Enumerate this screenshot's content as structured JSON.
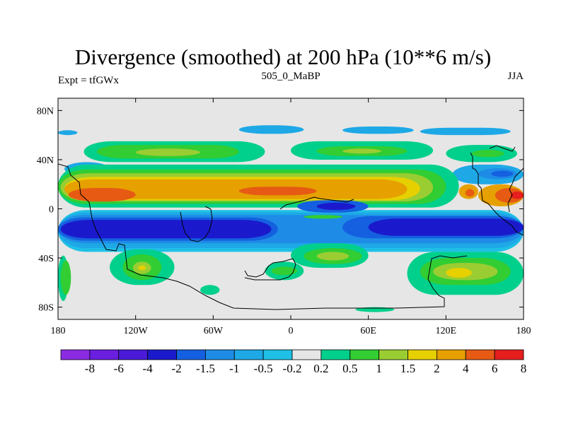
{
  "chart_data": {
    "type": "heatmap",
    "title": "Divergence (smoothed) at 200 hPa (10**6 m/s)",
    "left_string": "Expt = tfGWx",
    "center_string": "505_0_MaBP",
    "right_string": "JJA",
    "xlim": [
      -180,
      180
    ],
    "ylim": [
      -90,
      90
    ],
    "x_ticks": [
      {
        "value": -180,
        "label": "180"
      },
      {
        "value": -120,
        "label": "120W"
      },
      {
        "value": -60,
        "label": "60W"
      },
      {
        "value": 0,
        "label": "0"
      },
      {
        "value": 60,
        "label": "60E"
      },
      {
        "value": 120,
        "label": "120E"
      },
      {
        "value": 180,
        "label": "180"
      }
    ],
    "y_ticks": [
      {
        "value": 80,
        "label": "80N"
      },
      {
        "value": 40,
        "label": "40N"
      },
      {
        "value": 0,
        "label": "0"
      },
      {
        "value": -40,
        "label": "40S"
      },
      {
        "value": -80,
        "label": "80S"
      }
    ],
    "colorbar": {
      "labels": [
        "-8",
        "-6",
        "-4",
        "-2",
        "-1.5",
        "-1",
        "-0.5",
        "-0.2",
        "0.2",
        "0.5",
        "1",
        "1.5",
        "2",
        "4",
        "6",
        "8"
      ],
      "colors": [
        "#8a2be2",
        "#6a1ee0",
        "#4a1ad8",
        "#1a1acc",
        "#1460e0",
        "#1e8ce6",
        "#1ea8e6",
        "#1ec0e6",
        "#e6e6e6",
        "#00d08c",
        "#32cd32",
        "#9acd32",
        "#e6d000",
        "#e6a000",
        "#e65a14",
        "#e61e1e"
      ]
    },
    "field": [
      {
        "level": -0.5,
        "lon0": -40,
        "lon1": 10,
        "lat0": 61,
        "lat1": 68
      },
      {
        "level": -0.5,
        "lon0": 40,
        "lon1": 95,
        "lat0": 61,
        "lat1": 67
      },
      {
        "level": -0.5,
        "lon0": 100,
        "lon1": 170,
        "lat0": 60,
        "lat1": 66
      },
      {
        "level": -0.5,
        "lon0": -180,
        "lon1": -165,
        "lat0": 60,
        "lat1": 64
      },
      {
        "level": 0.2,
        "lon0": -160,
        "lon1": -20,
        "lat0": 38,
        "lat1": 55
      },
      {
        "level": 0.5,
        "lon0": -150,
        "lon1": -40,
        "lat0": 41,
        "lat1": 52
      },
      {
        "level": 1,
        "lon0": -120,
        "lon1": -70,
        "lat0": 43,
        "lat1": 49
      },
      {
        "level": 0.2,
        "lon0": 0,
        "lon1": 110,
        "lat0": 40,
        "lat1": 55
      },
      {
        "level": 0.5,
        "lon0": 20,
        "lon1": 90,
        "lat0": 43,
        "lat1": 51
      },
      {
        "level": 1,
        "lon0": 40,
        "lon1": 70,
        "lat0": 45,
        "lat1": 49
      },
      {
        "level": 0.2,
        "lon0": 120,
        "lon1": 175,
        "lat0": 38,
        "lat1": 52
      },
      {
        "level": 0.5,
        "lon0": 140,
        "lon1": 165,
        "lat0": 42,
        "lat1": 48
      },
      {
        "level": -0.5,
        "lon0": -175,
        "lon1": -140,
        "lat0": 27,
        "lat1": 38
      },
      {
        "level": -1,
        "lon0": -160,
        "lon1": -145,
        "lat0": 31,
        "lat1": 35
      },
      {
        "level": -0.5,
        "lon0": 125,
        "lon1": 180,
        "lat0": 20,
        "lat1": 36
      },
      {
        "level": -1,
        "lon0": 145,
        "lon1": 175,
        "lat0": 24,
        "lat1": 33
      },
      {
        "level": -1.5,
        "lon0": 155,
        "lon1": 172,
        "lat0": 26,
        "lat1": 31
      },
      {
        "level": 0.2,
        "lon0": -180,
        "lon1": 130,
        "lat0": 1,
        "lat1": 36
      },
      {
        "level": 0.5,
        "lon0": -180,
        "lon1": 120,
        "lat0": 4,
        "lat1": 32
      },
      {
        "level": 1,
        "lon0": -178,
        "lon1": 110,
        "lat0": 6,
        "lat1": 29
      },
      {
        "level": 1.5,
        "lon0": -175,
        "lon1": 100,
        "lat0": 7,
        "lat1": 26
      },
      {
        "level": 2,
        "lon0": -175,
        "lon1": 90,
        "lat0": 8,
        "lat1": 24
      },
      {
        "level": 4,
        "lon0": -172,
        "lon1": -120,
        "lat0": 6,
        "lat1": 17
      },
      {
        "level": 4,
        "lon0": -40,
        "lon1": 20,
        "lat0": 11,
        "lat1": 18
      },
      {
        "level": 2,
        "lon0": 145,
        "lon1": 180,
        "lat0": 2,
        "lat1": 20
      },
      {
        "level": 4,
        "lon0": 158,
        "lon1": 180,
        "lat0": 5,
        "lat1": 17
      },
      {
        "level": 6,
        "lon0": 170,
        "lon1": 180,
        "lat0": 8,
        "lat1": 14
      },
      {
        "level": 2,
        "lon0": 130,
        "lon1": 145,
        "lat0": 8,
        "lat1": 20
      },
      {
        "level": 4,
        "lon0": 135,
        "lon1": 142,
        "lat0": 10,
        "lat1": 16
      },
      {
        "level": -0.2,
        "lon0": -180,
        "lon1": 180,
        "lat0": -35,
        "lat1": -1
      },
      {
        "level": -0.5,
        "lon0": -180,
        "lon1": 180,
        "lat0": -32,
        "lat1": -3
      },
      {
        "level": -1,
        "lon0": -180,
        "lon1": 180,
        "lat0": -28,
        "lat1": -5
      },
      {
        "level": -1.5,
        "lon0": -180,
        "lon1": -10,
        "lat0": -26,
        "lat1": -7
      },
      {
        "level": -2,
        "lon0": -178,
        "lon1": -15,
        "lat0": -24,
        "lat1": -9
      },
      {
        "level": -1.5,
        "lon0": 40,
        "lon1": 180,
        "lat0": -24,
        "lat1": -6
      },
      {
        "level": -2,
        "lon0": 60,
        "lon1": 180,
        "lat0": -22,
        "lat1": -8
      },
      {
        "level": -1.5,
        "lon0": 5,
        "lon1": 60,
        "lat0": -3,
        "lat1": 7
      },
      {
        "level": -2,
        "lon0": 20,
        "lon1": 50,
        "lat0": -1,
        "lat1": 5
      },
      {
        "level": 0.5,
        "lon0": 10,
        "lon1": 40,
        "lat0": -8,
        "lat1": -5
      },
      {
        "level": 0.2,
        "lon0": -180,
        "lon1": -172,
        "lat0": -75,
        "lat1": -38
      },
      {
        "level": 0.5,
        "lon0": -178,
        "lon1": -170,
        "lat0": -70,
        "lat1": -42
      },
      {
        "level": 0.2,
        "lon0": -140,
        "lon1": -90,
        "lat0": -62,
        "lat1": -33
      },
      {
        "level": 0.5,
        "lon0": -130,
        "lon1": -100,
        "lat0": -58,
        "lat1": -37
      },
      {
        "level": 1,
        "lon0": -122,
        "lon1": -108,
        "lat0": -53,
        "lat1": -43
      },
      {
        "level": 1.5,
        "lon0": -118,
        "lon1": -112,
        "lat0": -50,
        "lat1": -46
      },
      {
        "level": 0.2,
        "lon0": -70,
        "lon1": -55,
        "lat0": -70,
        "lat1": -62
      },
      {
        "level": 0.2,
        "lon0": -20,
        "lon1": 10,
        "lat0": -58,
        "lat1": -43
      },
      {
        "level": 0.5,
        "lon0": -15,
        "lon1": 5,
        "lat0": -54,
        "lat1": -47
      },
      {
        "level": 0.2,
        "lon0": 0,
        "lon1": 60,
        "lat0": -48,
        "lat1": -28
      },
      {
        "level": 0.5,
        "lon0": 10,
        "lon1": 55,
        "lat0": -45,
        "lat1": -32
      },
      {
        "level": 1,
        "lon0": 20,
        "lon1": 45,
        "lat0": -42,
        "lat1": -35
      },
      {
        "level": 0.2,
        "lon0": 90,
        "lon1": 180,
        "lat0": -70,
        "lat1": -35
      },
      {
        "level": 0.5,
        "lon0": 100,
        "lon1": 170,
        "lat0": -62,
        "lat1": -40
      },
      {
        "level": 1,
        "lon0": 110,
        "lon1": 160,
        "lat0": -58,
        "lat1": -44
      },
      {
        "level": 1.5,
        "lon0": 120,
        "lon1": 140,
        "lat0": -56,
        "lat1": -48
      },
      {
        "level": 0.2,
        "lon0": 50,
        "lon1": 80,
        "lat0": -84,
        "lat1": -80
      }
    ]
  }
}
